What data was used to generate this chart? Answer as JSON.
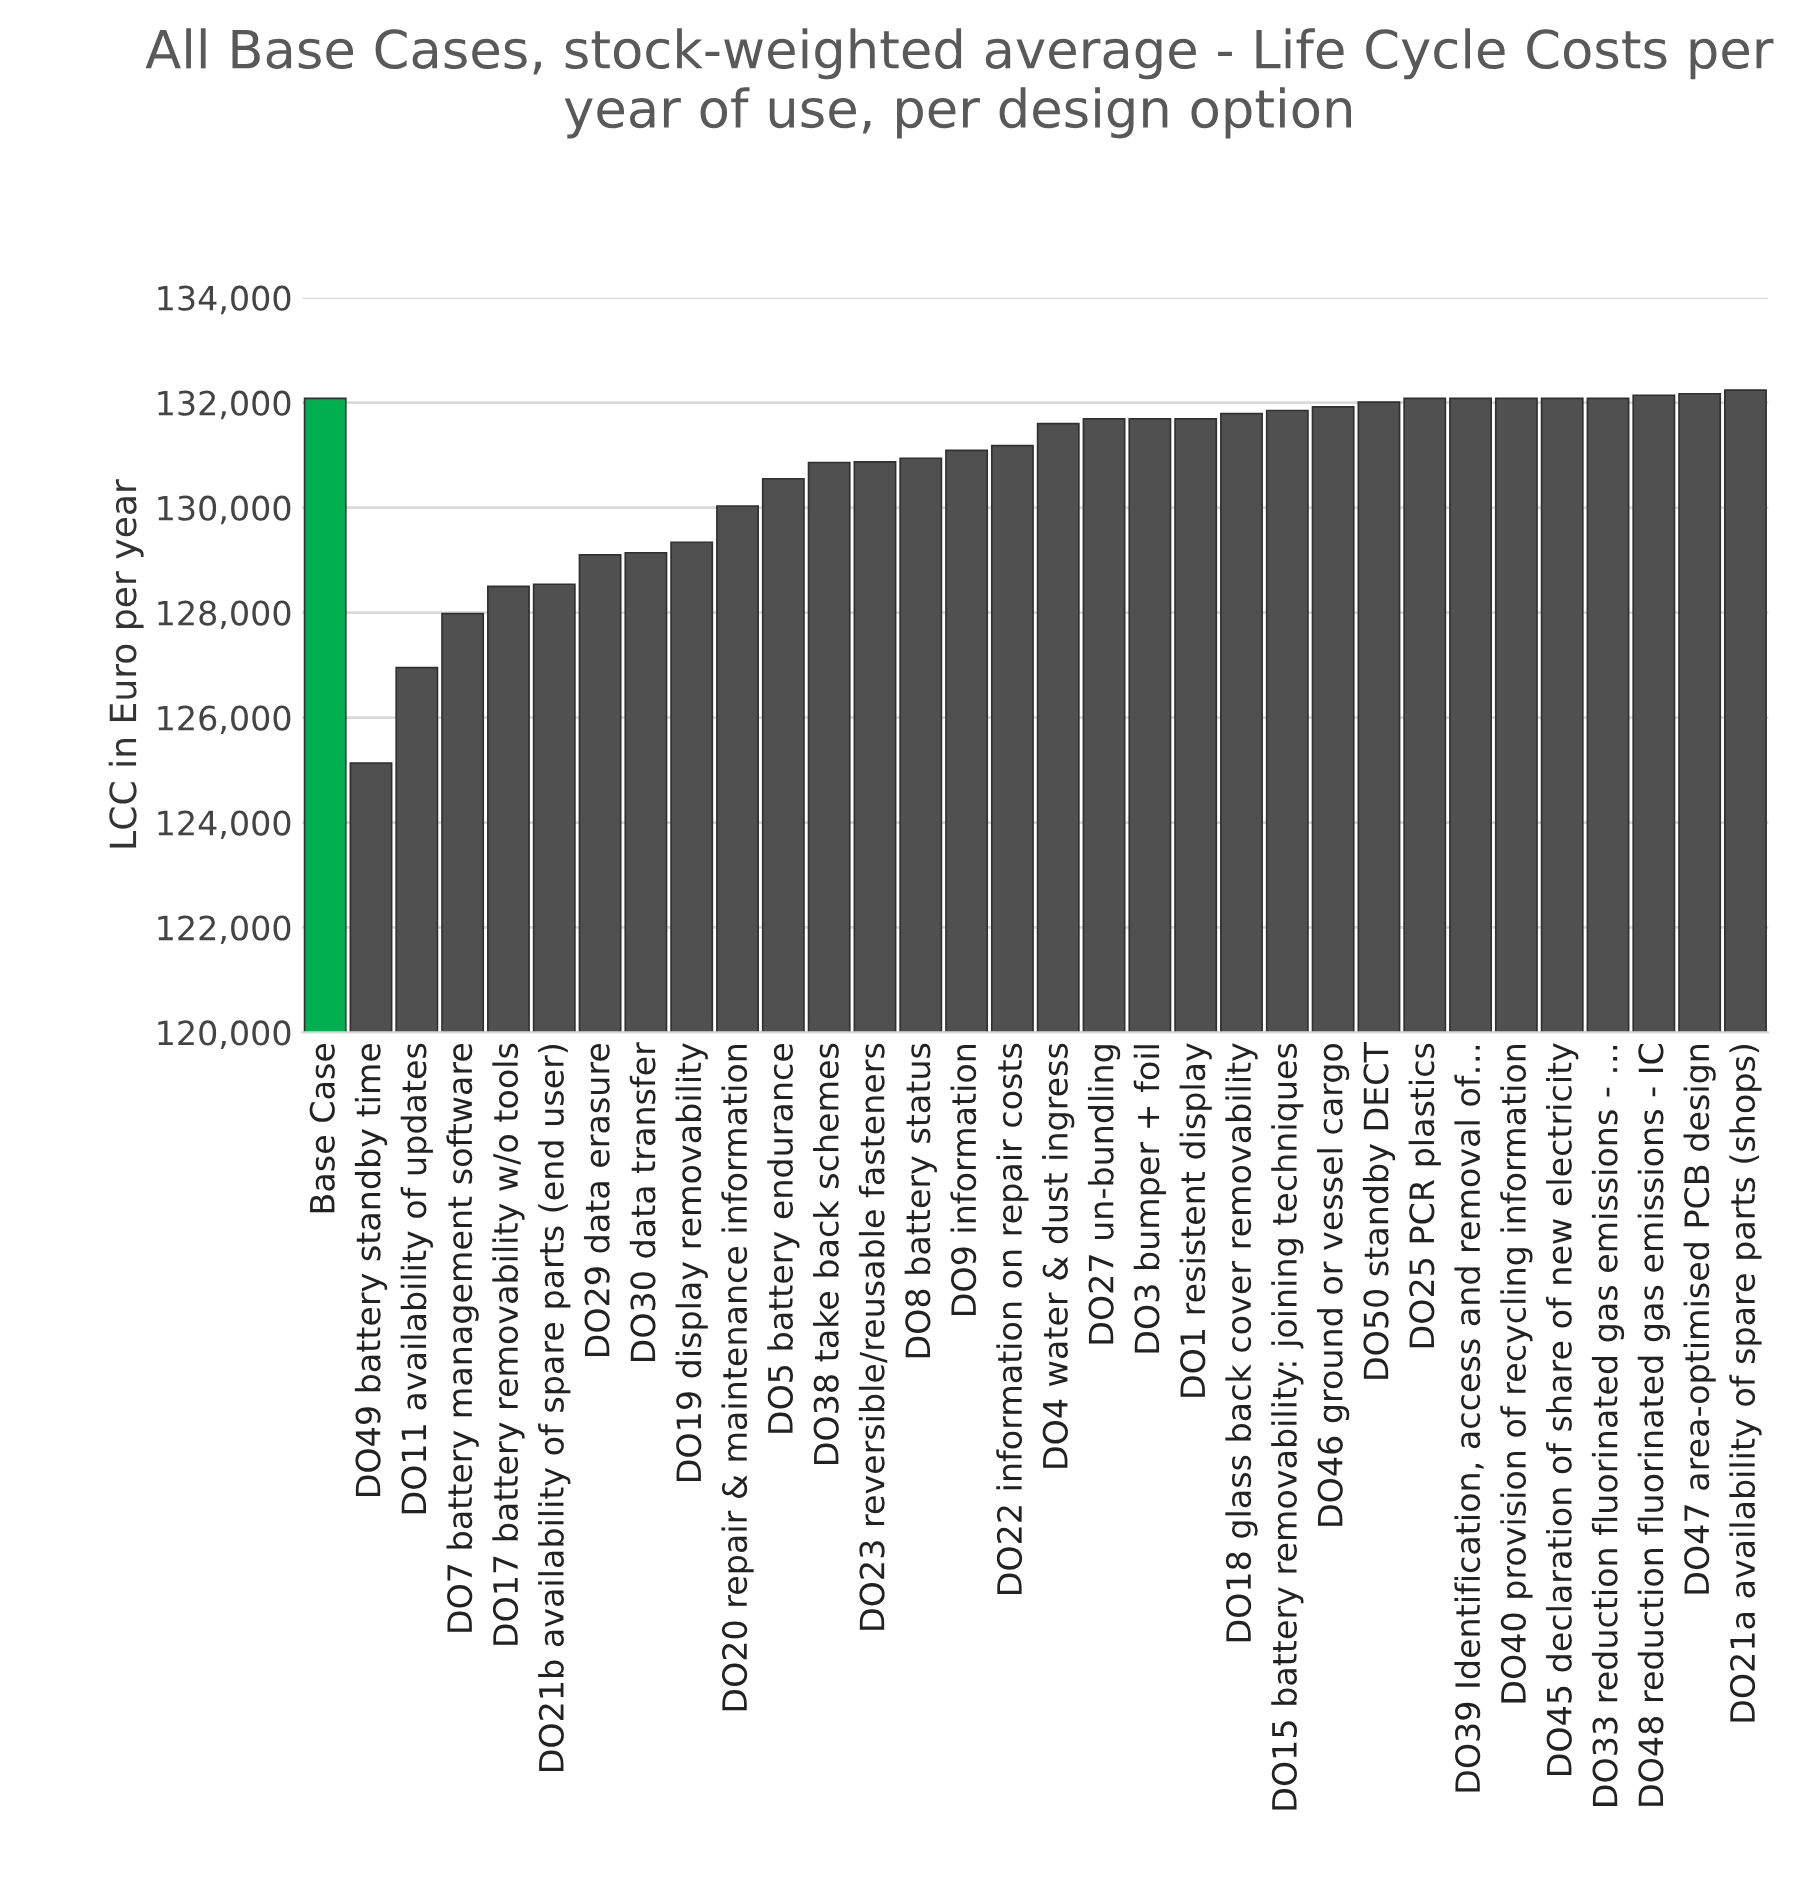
{
  "chart_data": {
    "type": "bar",
    "title": "All Base Cases, stock-weighted average - Life Cycle Costs per year of use, per design option",
    "ylabel": "LCC in Euro per year",
    "categories": [
      "Base Case",
      "DO49 battery standby time",
      "DO11 availability of updates",
      "DO7 battery management software",
      "DO17 battery removability w/o tools",
      "DO21b availability of spare parts (end user)",
      "DO29 data erasure",
      "DO30 data transfer",
      "DO19 display removability",
      "DO20 repair & maintenance information",
      "DO5 battery endurance",
      "DO38 take back schemes",
      "DO23 reversible/reusable fasteners",
      "DO8 battery status",
      "DO9 information",
      "DO22 information on repair costs",
      "DO4 water & dust ingress",
      "DO27 un-bundling",
      "DO3 bumper + foil",
      "DO1 resistent display",
      "DO18 glass back cover removability",
      "DO15 battery removability: joining techniques",
      "DO46 ground or vessel cargo",
      "DO50 standby DECT",
      "DO25 PCR plastics",
      "DO39 Identification, access and removal of…",
      "DO40 provision of recycling information",
      "DO45 declaration of share of new electricity",
      "DO33 reduction fluorinated gas emissions - …",
      "DO48 reduction fluorinated gas emissions - IC",
      "DO47 area-optimised PCB design",
      "DO21a availability of spare parts (shops)"
    ],
    "values": [
      132080,
      125130,
      126950,
      127980,
      128500,
      128540,
      129100,
      129140,
      129340,
      130030,
      130550,
      130860,
      130870,
      130940,
      131090,
      131180,
      131600,
      131690,
      131690,
      131690,
      131790,
      131850,
      131920,
      132010,
      132080,
      132080,
      132080,
      132080,
      132080,
      132140,
      132170,
      132240
    ],
    "colors": [
      "#00b050",
      "#505050",
      "#505050",
      "#505050",
      "#505050",
      "#505050",
      "#505050",
      "#505050",
      "#505050",
      "#505050",
      "#505050",
      "#505050",
      "#505050",
      "#505050",
      "#505050",
      "#505050",
      "#505050",
      "#505050",
      "#505050",
      "#505050",
      "#505050",
      "#505050",
      "#505050",
      "#505050",
      "#505050",
      "#505050",
      "#505050",
      "#505050",
      "#505050",
      "#505050",
      "#505050",
      "#505050"
    ],
    "ylim": [
      120000,
      134000
    ],
    "yticks": [
      {
        "value": 120000,
        "label": "120,000"
      },
      {
        "value": 122000,
        "label": "122,000"
      },
      {
        "value": 124000,
        "label": "124,000"
      },
      {
        "value": 126000,
        "label": "126,000"
      },
      {
        "value": 128000,
        "label": "128,000"
      },
      {
        "value": 130000,
        "label": "130,000"
      },
      {
        "value": 132000,
        "label": "132,000"
      },
      {
        "value": 134000,
        "label": "134,000"
      }
    ],
    "grid": "y"
  }
}
